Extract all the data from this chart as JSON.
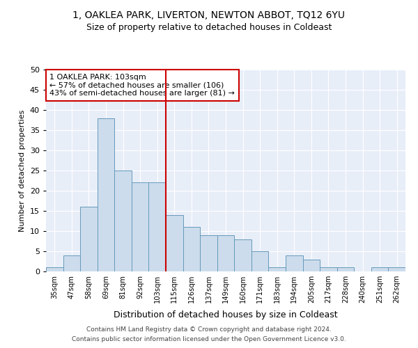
{
  "title": "1, OAKLEA PARK, LIVERTON, NEWTON ABBOT, TQ12 6YU",
  "subtitle": "Size of property relative to detached houses in Coldeast",
  "xlabel": "Distribution of detached houses by size in Coldeast",
  "ylabel": "Number of detached properties",
  "categories": [
    "35sqm",
    "47sqm",
    "58sqm",
    "69sqm",
    "81sqm",
    "92sqm",
    "103sqm",
    "115sqm",
    "126sqm",
    "137sqm",
    "149sqm",
    "160sqm",
    "171sqm",
    "183sqm",
    "194sqm",
    "205sqm",
    "217sqm",
    "228sqm",
    "240sqm",
    "251sqm",
    "262sqm"
  ],
  "values": [
    1,
    4,
    16,
    38,
    25,
    22,
    22,
    14,
    11,
    9,
    9,
    8,
    5,
    1,
    4,
    3,
    1,
    1,
    0,
    1,
    1
  ],
  "bar_color": "#ccdcec",
  "bar_edge_color": "#6699bb",
  "marker_index": 6,
  "marker_color": "#cc0000",
  "annotation_title": "1 OAKLEA PARK: 103sqm",
  "annotation_line1": "← 57% of detached houses are smaller (106)",
  "annotation_line2": "43% of semi-detached houses are larger (81) →",
  "ylim": [
    0,
    50
  ],
  "yticks": [
    0,
    5,
    10,
    15,
    20,
    25,
    30,
    35,
    40,
    45,
    50
  ],
  "bg_color": "#e8eef8",
  "title_fontsize": 10,
  "subtitle_fontsize": 9,
  "footer1": "Contains HM Land Registry data © Crown copyright and database right 2024.",
  "footer2": "Contains public sector information licensed under the Open Government Licence v3.0."
}
